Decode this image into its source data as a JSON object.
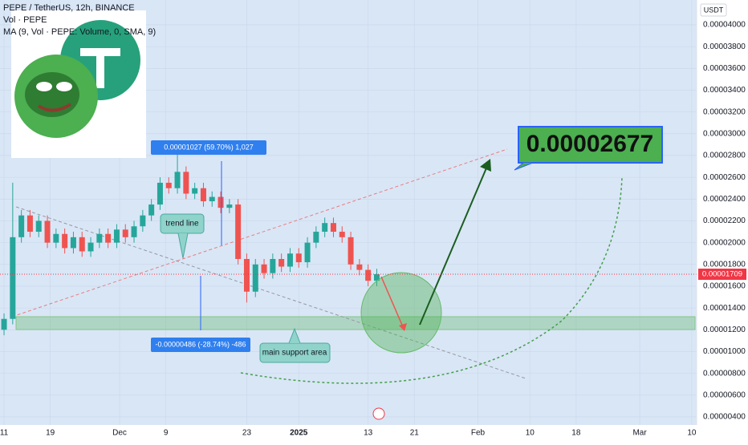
{
  "header": {
    "title": "PEPE / TetherUS, 12h, BINANCE",
    "vol": "Vol · PEPE",
    "ma": "MA (9, Vol · PEPE: Volume, 0, SMA, 9)"
  },
  "chart_data": {
    "type": "candlestick",
    "x": [
      0,
      3,
      6,
      9,
      12,
      15,
      18,
      21,
      24,
      27,
      30,
      33,
      36,
      39,
      42,
      45,
      48,
      51,
      54,
      57,
      60,
      63,
      66,
      69,
      72,
      75,
      78,
      81,
      84,
      87,
      90,
      93,
      96,
      99,
      102,
      105,
      108,
      111,
      114,
      117,
      120,
      123,
      126,
      129
    ],
    "open": [
      1.2e-05,
      1.3e-05,
      2.05e-05,
      2.25e-05,
      2.1e-05,
      2.2e-05,
      2e-05,
      2.08e-05,
      1.95e-05,
      2.05e-05,
      1.92e-05,
      2e-05,
      2.08e-05,
      2e-05,
      2.12e-05,
      2.05e-05,
      2.15e-05,
      2.25e-05,
      2.35e-05,
      2.55e-05,
      2.5e-05,
      2.65e-05,
      2.45e-05,
      2.5e-05,
      2.38e-05,
      2.42e-05,
      2.32e-05,
      2.35e-05,
      1.85e-05,
      1.55e-05,
      1.8e-05,
      1.72e-05,
      1.85e-05,
      1.78e-05,
      1.9e-05,
      1.82e-05,
      2e-05,
      2.1e-05,
      2.18e-05,
      2.1e-05,
      2.05e-05,
      1.8e-05,
      1.75e-05,
      1.65e-05
    ],
    "high": [
      1.35e-05,
      2.55e-05,
      2.3e-05,
      2.3e-05,
      2.25e-05,
      2.25e-05,
      2.13e-05,
      2.13e-05,
      2.1e-05,
      2.1e-05,
      2.05e-05,
      2.13e-05,
      2.13e-05,
      2.17e-05,
      2.17e-05,
      2.2e-05,
      2.3e-05,
      2.4e-05,
      2.6e-05,
      2.6e-05,
      2.82e-05,
      2.7e-05,
      2.55e-05,
      2.55e-05,
      2.47e-05,
      2.47e-05,
      2.4e-05,
      2.4e-05,
      1.9e-05,
      1.85e-05,
      1.85e-05,
      1.9e-05,
      1.9e-05,
      1.95e-05,
      1.95e-05,
      2.05e-05,
      2.15e-05,
      2.23e-05,
      2.23e-05,
      2.15e-05,
      2.1e-05,
      1.85e-05,
      1.8e-05,
      1.76e-05
    ],
    "low": [
      1.15e-05,
      1.25e-05,
      2e-05,
      2.05e-05,
      2.05e-05,
      1.95e-05,
      1.95e-05,
      1.9e-05,
      1.9e-05,
      1.87e-05,
      1.87e-05,
      1.95e-05,
      1.95e-05,
      1.95e-05,
      2e-05,
      2e-05,
      2.1e-05,
      2.2e-05,
      2.3e-05,
      2.45e-05,
      2.45e-05,
      2.4e-05,
      2.4e-05,
      2.33e-05,
      2.33e-05,
      2.27e-05,
      2.27e-05,
      1.8e-05,
      1.45e-05,
      1.5e-05,
      1.67e-05,
      1.67e-05,
      1.73e-05,
      1.73e-05,
      1.77e-05,
      1.77e-05,
      1.95e-05,
      2.05e-05,
      2.05e-05,
      2e-05,
      1.75e-05,
      1.7e-05,
      1.6e-05,
      1.6e-05
    ],
    "close": [
      1.3e-05,
      2.05e-05,
      2.25e-05,
      2.1e-05,
      2.2e-05,
      2e-05,
      2.08e-05,
      1.95e-05,
      2.05e-05,
      1.92e-05,
      2e-05,
      2.08e-05,
      2e-05,
      2.12e-05,
      2.05e-05,
      2.15e-05,
      2.25e-05,
      2.35e-05,
      2.55e-05,
      2.5e-05,
      2.65e-05,
      2.45e-05,
      2.5e-05,
      2.38e-05,
      2.42e-05,
      2.32e-05,
      2.35e-05,
      1.85e-05,
      1.55e-05,
      1.8e-05,
      1.72e-05,
      1.85e-05,
      1.78e-05,
      1.9e-05,
      1.82e-05,
      2e-05,
      2.1e-05,
      2.18e-05,
      2.1e-05,
      2.05e-05,
      1.8e-05,
      1.75e-05,
      1.65e-05,
      1.71e-05
    ],
    "up_color": "#26a69a",
    "down_color": "#ef5350",
    "xlim": [
      -1.4,
      239.7
    ],
    "xticks": [
      {
        "value": 0,
        "label": "11"
      },
      {
        "value": 16,
        "label": "19"
      },
      {
        "value": 40,
        "label": "Dec"
      },
      {
        "value": 56,
        "label": "9"
      },
      {
        "value": 84,
        "label": "23"
      },
      {
        "value": 102,
        "label": "2025"
      },
      {
        "value": 126,
        "label": "13"
      },
      {
        "value": 142,
        "label": "21"
      },
      {
        "value": 164,
        "label": "Feb"
      },
      {
        "value": 182,
        "label": "10"
      },
      {
        "value": 198,
        "label": "18"
      },
      {
        "value": 220,
        "label": "Mar"
      },
      {
        "value": 238,
        "label": "10"
      }
    ],
    "ylim": [
      3.26e-06,
      4.228e-05
    ],
    "yticks": [
      {
        "value": 4e-06,
        "label": "0.00000400"
      },
      {
        "value": 6e-06,
        "label": "0.00000600"
      },
      {
        "value": 8e-06,
        "label": "0.00000800"
      },
      {
        "value": 1e-05,
        "label": "0.00001000"
      },
      {
        "value": 1.2e-05,
        "label": "0.00001200"
      },
      {
        "value": 1.4e-05,
        "label": "0.00001400"
      },
      {
        "value": 1.6e-05,
        "label": "0.00001600"
      },
      {
        "value": 1.8e-05,
        "label": "0.00001800"
      },
      {
        "value": 2e-05,
        "label": "0.00002000"
      },
      {
        "value": 2.2e-05,
        "label": "0.00002200"
      },
      {
        "value": 2.4e-05,
        "label": "0.00002400"
      },
      {
        "value": 2.6e-05,
        "label": "0.00002600"
      },
      {
        "value": 2.8e-05,
        "label": "0.00002800"
      },
      {
        "value": 3e-05,
        "label": "0.00003000"
      },
      {
        "value": 3.2e-05,
        "label": "0.00003200"
      },
      {
        "value": 3.4e-05,
        "label": "0.00003400"
      },
      {
        "value": 3.6e-05,
        "label": "0.00003600"
      },
      {
        "value": 3.8e-05,
        "label": "0.00003800"
      },
      {
        "value": 4e-05,
        "label": "0.00004000"
      }
    ],
    "grid": true,
    "annotations": {
      "measure_up": "0.00001027 (59.70%) 1,027",
      "measure_down": "-0.00000486 (-28.74%) -486",
      "trend_line": "trend line",
      "support": "main support area",
      "target": "0.00002677",
      "last_price": "0.00001709",
      "currency": "USDT"
    }
  }
}
